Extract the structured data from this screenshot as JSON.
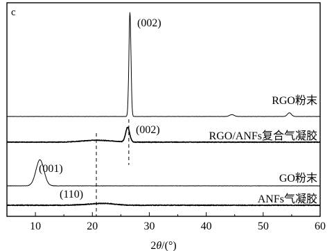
{
  "chart_data": {
    "type": "line",
    "panel_label": "c",
    "xlabel_parts": [
      "2",
      "θ",
      "/(°)"
    ],
    "xlim": [
      5,
      60
    ],
    "x_ticks": [
      10,
      20,
      30,
      40,
      50,
      60
    ],
    "dashed_reference_x": [
      20.7,
      26.4
    ],
    "series": [
      {
        "name": "RGO粉末",
        "baseline": 0,
        "peaks": [
          {
            "x": 26.6,
            "height": 1.0,
            "width": 0.18
          },
          {
            "x": 44.5,
            "height": 0.018,
            "width": 0.4
          },
          {
            "x": 54.6,
            "height": 0.035,
            "width": 0.35
          }
        ]
      },
      {
        "name": "RGO/ANFs复合气凝胶",
        "baseline": 0,
        "peaks": [
          {
            "x": 26.2,
            "height": 0.14,
            "width": 0.35
          },
          {
            "x": 20.9,
            "height": 0.018,
            "width": 2.6
          }
        ]
      },
      {
        "name": "GO粉末",
        "baseline": 0,
        "peaks": [
          {
            "x": 10.8,
            "height": 0.25,
            "width": 0.7
          }
        ]
      },
      {
        "name": "ANFs气凝胶",
        "baseline": 0,
        "peaks": [
          {
            "x": 20.7,
            "height": 0.012,
            "width": 2.2
          },
          {
            "x": 22.9,
            "height": 0.009,
            "width": 1.5
          }
        ]
      }
    ],
    "peak_labels": [
      {
        "text": "(002)",
        "series": "RGO粉末"
      },
      {
        "text": "(002)",
        "series": "RGO/ANFs复合气凝胶"
      },
      {
        "text": "(001)",
        "series": "GO粉末"
      },
      {
        "text": "(110)",
        "series": "ANFs气凝胶"
      }
    ]
  }
}
